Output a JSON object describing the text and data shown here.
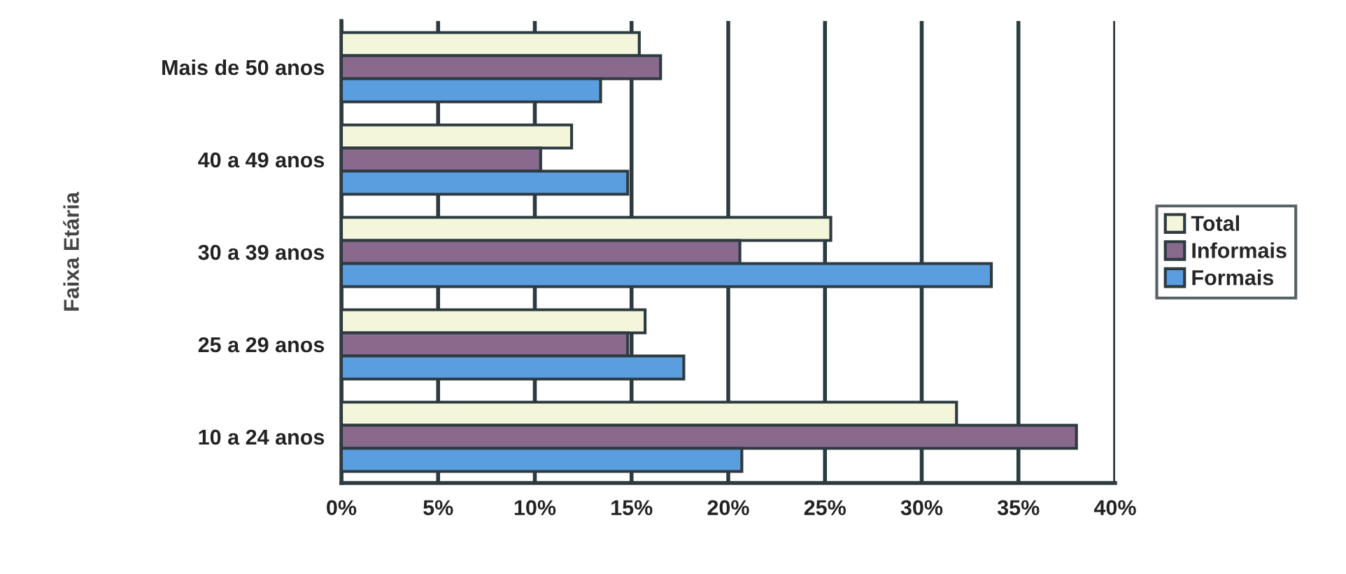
{
  "chart_data": {
    "type": "bar",
    "orientation": "horizontal",
    "ylabel": "Faixa Etária",
    "categories": [
      "Mais de 50 anos",
      "40 a 49 anos",
      "30 a 39 anos",
      "25 a 29 anos",
      "10 a 24 anos"
    ],
    "series": [
      {
        "name": "Total",
        "color": "#f4f6dc",
        "values": [
          15.4,
          11.9,
          25.3,
          15.7,
          31.8
        ]
      },
      {
        "name": "Informais",
        "color": "#8a6a8c",
        "values": [
          16.5,
          10.3,
          20.6,
          14.8,
          38.0
        ]
      },
      {
        "name": "Formais",
        "color": "#5b9ee0",
        "values": [
          13.4,
          14.8,
          33.6,
          17.7,
          20.7
        ]
      }
    ],
    "xlim": [
      0,
      40
    ],
    "xticks": [
      {
        "value": 0,
        "label": "0%"
      },
      {
        "value": 5,
        "label": "5%"
      },
      {
        "value": 10,
        "label": "10%"
      },
      {
        "value": 15,
        "label": "15%"
      },
      {
        "value": 20,
        "label": "20%"
      },
      {
        "value": 25,
        "label": "25%"
      },
      {
        "value": 30,
        "label": "30%"
      },
      {
        "value": 35,
        "label": "35%"
      },
      {
        "value": 40,
        "label": "40%"
      }
    ],
    "grid": "x",
    "legend": "right"
  }
}
